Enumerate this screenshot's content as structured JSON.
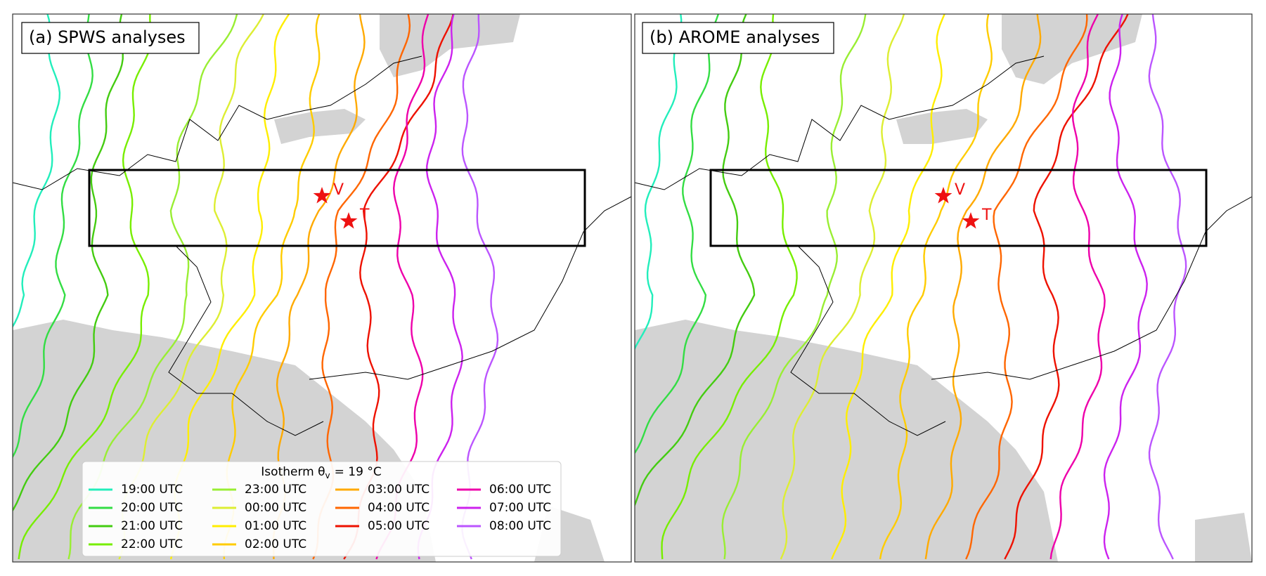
{
  "panels": [
    {
      "title": "(a) SPWS analyses",
      "stations": [
        {
          "label": "V"
        },
        {
          "label": "T"
        }
      ]
    },
    {
      "title": "(b) AROME analyses",
      "stations": [
        {
          "label": "V"
        },
        {
          "label": "T"
        }
      ]
    }
  ],
  "legend": {
    "title_prefix": "Isotherm θ",
    "title_sub": "v",
    "title_suffix": "= 19 °C",
    "entries": [
      {
        "name": "19:00 UTC",
        "color": "#22eebb"
      },
      {
        "name": "20:00 UTC",
        "color": "#33dd44"
      },
      {
        "name": "21:00 UTC",
        "color": "#44cc11"
      },
      {
        "name": "22:00 UTC",
        "color": "#77ee00"
      },
      {
        "name": "23:00 UTC",
        "color": "#99ee33"
      },
      {
        "name": "00:00 UTC",
        "color": "#ddee33"
      },
      {
        "name": "01:00 UTC",
        "color": "#ffee00"
      },
      {
        "name": "02:00 UTC",
        "color": "#ffcc00"
      },
      {
        "name": "03:00 UTC",
        "color": "#ffaa00"
      },
      {
        "name": "04:00 UTC",
        "color": "#ff6600"
      },
      {
        "name": "05:00 UTC",
        "color": "#ee1100"
      },
      {
        "name": "06:00 UTC",
        "color": "#ee00aa"
      },
      {
        "name": "07:00 UTC",
        "color": "#cc22ee"
      },
      {
        "name": "08:00 UTC",
        "color": "#bb55ff"
      }
    ]
  }
}
